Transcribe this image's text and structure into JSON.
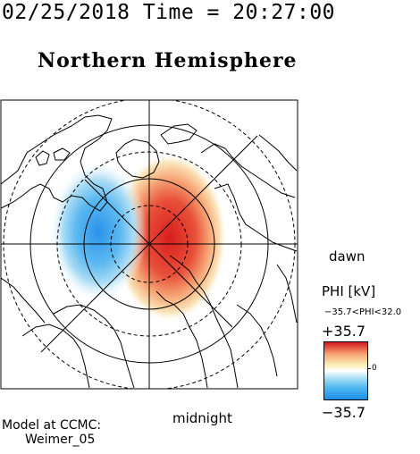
{
  "header": {
    "timestamp": "02/25/2018 Time = 20:27:00",
    "hemisphere": "Northern Hemisphere"
  },
  "map": {
    "direction_labels": {
      "dawn": "dawn",
      "midnight": "midnight"
    },
    "colors": {
      "positive": "#e0322c",
      "negative": "#1f8fe8",
      "land_outline": "#000000"
    }
  },
  "colorbar": {
    "title": "PHI [kV]",
    "range_label": "−35.7<PHI<32.0",
    "max_label": "+35.7",
    "min_label": "−35.7",
    "zero_label": "0"
  },
  "model": {
    "source_label": "Model at CCMC:",
    "model_name": "Weimer_05"
  }
}
